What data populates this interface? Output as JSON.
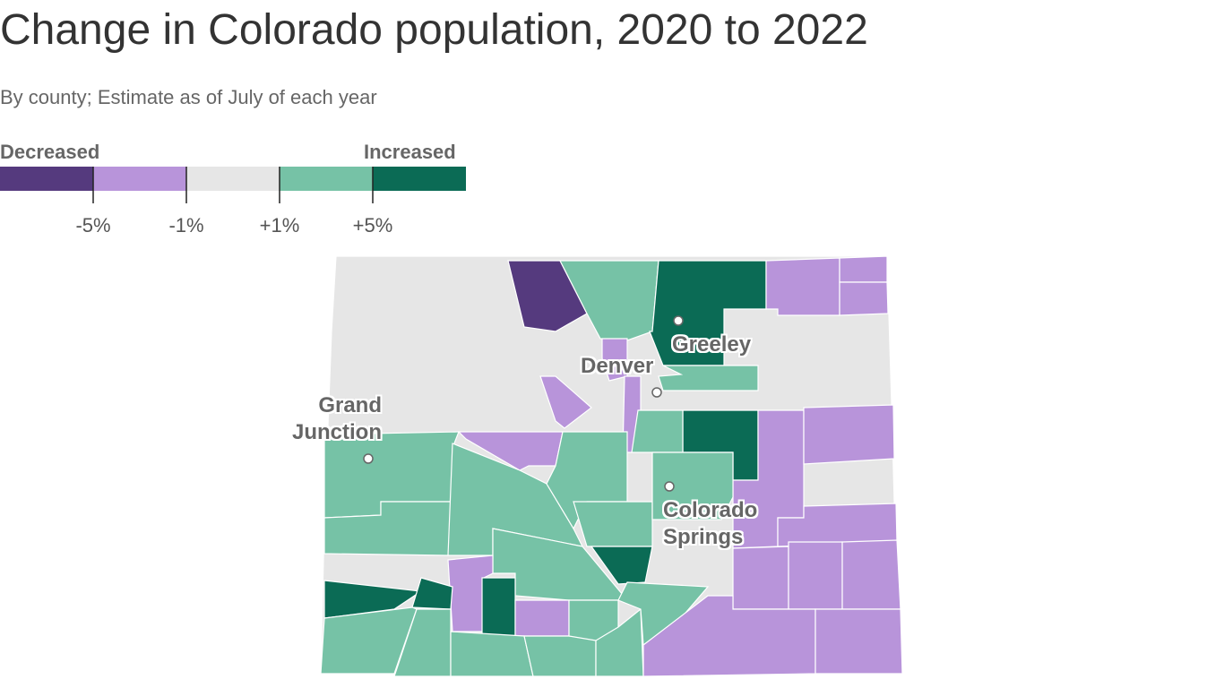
{
  "header": {
    "title": "Change in Colorado population, 2020 to 2022",
    "subtitle": "By county; Estimate as of July of each year"
  },
  "legend": {
    "low_label": "Decreased",
    "high_label": "Increased",
    "colors": [
      "#553a7e",
      "#b894da",
      "#e6e6e6",
      "#76c2a6",
      "#0b6b55"
    ],
    "ticks": [
      {
        "value": -5,
        "label": "-5%"
      },
      {
        "value": -1,
        "label": "-1%"
      },
      {
        "value": 1,
        "label": "+1%"
      },
      {
        "value": 5,
        "label": "+5%"
      }
    ]
  },
  "cities": [
    {
      "label": "Greeley"
    },
    {
      "label": "Denver"
    },
    {
      "label": "Grand Junction"
    },
    {
      "label": "Colorado Springs"
    }
  ]
}
